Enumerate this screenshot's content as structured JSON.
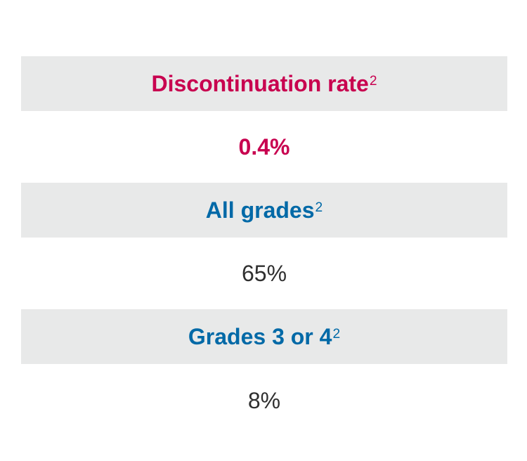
{
  "colors": {
    "accent_red": "#c8004f",
    "accent_blue": "#0069a7",
    "header_bg": "#e8e9e9",
    "value_text": "#2f2f2f"
  },
  "rows": [
    {
      "header": "Discontinuation rate",
      "header_sup": "2",
      "value": "0.4%"
    },
    {
      "header": "All grades",
      "header_sup": "2",
      "value": "65%"
    },
    {
      "header": "Grades 3 or 4",
      "header_sup": "2",
      "value": "8%"
    }
  ]
}
